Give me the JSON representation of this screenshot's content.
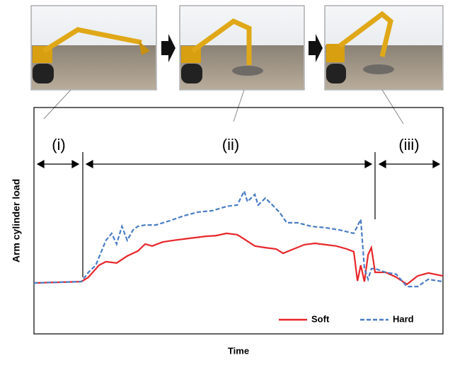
{
  "chart_data": {
    "type": "line",
    "x_label": "Time",
    "y_label": "Arm cylinder load",
    "annotations": [
      "(i)",
      "(ii)",
      "(iii)"
    ],
    "xlim": [
      0,
      100
    ],
    "ylim": [
      0,
      100
    ],
    "legend": "lower right",
    "series": [
      {
        "name": "Soft",
        "color": "#e8262a",
        "dash": false,
        "x": [
          0,
          11.6,
          13.3,
          15.9,
          17.6,
          20.2,
          22.8,
          25.4,
          27.2,
          28.9,
          31.5,
          34.1,
          36.7,
          39.3,
          41.9,
          44.5,
          47.1,
          49.7,
          51.4,
          54.0,
          56.6,
          59.2,
          60.9,
          63.5,
          66.1,
          68.7,
          71.3,
          73.9,
          76.5,
          78.2,
          79.1,
          79.9,
          80.8,
          81.7,
          82.5,
          83.4,
          86.0,
          88.6,
          91.2,
          93.8,
          96.4,
          100
        ],
        "values": [
          22.5,
          23.1,
          25,
          30.3,
          31.9,
          31.3,
          34.4,
          36.6,
          39.7,
          38.8,
          40.6,
          41.3,
          41.9,
          42.5,
          43.1,
          43.4,
          44.4,
          43.8,
          41.9,
          38.8,
          38.1,
          37.5,
          35.6,
          37.5,
          39.4,
          40,
          39.4,
          38.8,
          37.5,
          36.3,
          23.4,
          30.3,
          23.1,
          35,
          38.1,
          27.2,
          27.2,
          25,
          21.9,
          25.6,
          26.9,
          25.6
        ]
      },
      {
        "name": "Hard",
        "color": "#4a7cc4",
        "dash": true,
        "x": [
          0,
          11.6,
          13.3,
          15.1,
          17.6,
          19.0,
          20.2,
          21.5,
          22.8,
          24.2,
          25.4,
          27.2,
          29.8,
          33.2,
          36.7,
          40.1,
          43.6,
          47.1,
          49.7,
          51.4,
          52.2,
          54.0,
          54.8,
          56.6,
          58.3,
          60.0,
          61.8,
          64.4,
          67.8,
          71.3,
          74.7,
          78.2,
          79.9,
          80.8,
          81.7,
          82.5,
          83.4,
          86.0,
          88.6,
          91.2,
          93.8,
          96.4,
          100
        ],
        "values": [
          22.5,
          23.1,
          27.2,
          30.3,
          41.3,
          44.4,
          39.7,
          47.5,
          41.3,
          45.9,
          47.5,
          48.1,
          48.1,
          50,
          52.2,
          53.8,
          54.4,
          56.3,
          56.9,
          63.1,
          58.4,
          61.6,
          56.9,
          60,
          56.9,
          53.8,
          49.1,
          49.1,
          47.5,
          46.9,
          45.9,
          44.4,
          50.6,
          28.8,
          24.1,
          28.8,
          28.8,
          27.2,
          26.3,
          20.9,
          20.9,
          24.1,
          23.1
        ]
      }
    ]
  }
}
